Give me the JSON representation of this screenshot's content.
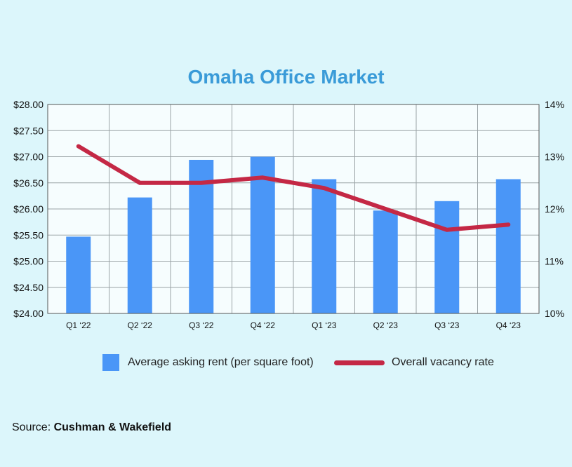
{
  "title": "Omaha Office Market",
  "colors": {
    "bar": "#4a96f7",
    "line": "#c42845",
    "plot_bg": "#f6fdfe",
    "background": "#dcf6fb",
    "title": "#3a9bd8"
  },
  "chart_data": {
    "type": "bar",
    "title": "Omaha Office Market",
    "categories": [
      "Q1 ‘22",
      "Q2 ‘22",
      "Q3 ‘22",
      "Q4 ‘22",
      "Q1 ‘23",
      "Q2 ‘23",
      "Q3 ‘23",
      "Q4 ‘23"
    ],
    "series": [
      {
        "name": "Average asking rent (per square foot)",
        "type": "bar",
        "axis": "left",
        "values": [
          25.47,
          26.22,
          26.94,
          27.0,
          26.57,
          25.97,
          26.15,
          26.57
        ]
      },
      {
        "name": "Overall vacancy rate",
        "type": "line",
        "axis": "right",
        "values": [
          13.2,
          12.5,
          12.5,
          12.6,
          12.4,
          12.0,
          11.6,
          11.7
        ]
      }
    ],
    "y_left": {
      "min": 24,
      "max": 28,
      "ticks": [
        "$24.00",
        "$24.50",
        "$25.00",
        "$25.50",
        "$26.00",
        "$26.50",
        "$27.00",
        "$27.50",
        "$28.00"
      ]
    },
    "y_right": {
      "min": 10,
      "max": 14,
      "ticks": [
        "10%",
        "11%",
        "12%",
        "13%",
        "14%"
      ]
    },
    "grid": true,
    "legend": "bottom"
  },
  "legend": {
    "bar_label": "Average asking rent (per square foot)",
    "line_label": "Overall vacancy rate"
  },
  "source": {
    "prefix": "Source:",
    "name": "Cushman & Wakefield"
  }
}
